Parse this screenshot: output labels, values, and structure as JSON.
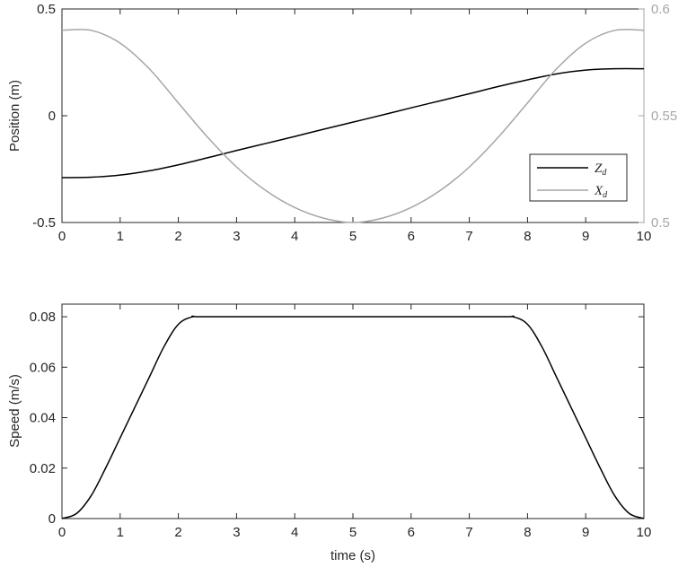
{
  "chart_data": [
    {
      "type": "line",
      "xlabel": "",
      "ylabel": "Position (m)",
      "xlim": [
        0,
        10
      ],
      "ylim": [
        -0.5,
        0.5
      ],
      "y2lim": [
        0.5,
        0.6
      ],
      "xticks": [
        "0",
        "1",
        "2",
        "3",
        "4",
        "5",
        "6",
        "7",
        "8",
        "9",
        "10"
      ],
      "yticks": [
        "-0.5",
        "0",
        "0.5"
      ],
      "y2ticks": [
        "0.5",
        "0.55",
        "0.6"
      ],
      "legend_position": "bottom-right",
      "series": [
        {
          "name": "Z_d",
          "legend_main": "Z",
          "legend_sub": "d",
          "color": "#000000",
          "axis": "left",
          "x": [
            0,
            0.5,
            1,
            1.5,
            2,
            2.5,
            3,
            3.5,
            4,
            4.5,
            5,
            5.5,
            6,
            6.5,
            7,
            7.5,
            8,
            8.5,
            9,
            9.5,
            10
          ],
          "y": [
            -0.29,
            -0.288,
            -0.278,
            -0.258,
            -0.23,
            -0.197,
            -0.163,
            -0.13,
            -0.097,
            -0.063,
            -0.03,
            0.003,
            0.037,
            0.07,
            0.103,
            0.137,
            0.168,
            0.196,
            0.214,
            0.22,
            0.22
          ]
        },
        {
          "name": "X_d",
          "legend_main": "X",
          "legend_sub": "d",
          "color": "#a6a6a6",
          "axis": "right",
          "x": [
            0,
            0.5,
            1,
            1.5,
            2,
            2.5,
            3,
            3.5,
            4,
            4.5,
            5,
            5.5,
            6,
            6.5,
            7,
            7.5,
            8,
            8.5,
            9,
            9.5,
            10
          ],
          "y": [
            0.59,
            0.59,
            0.584,
            0.572,
            0.556,
            0.54,
            0.526,
            0.515,
            0.507,
            0.502,
            0.5,
            0.502,
            0.507,
            0.515,
            0.526,
            0.54,
            0.556,
            0.572,
            0.584,
            0.59,
            0.59
          ]
        }
      ]
    },
    {
      "type": "line",
      "xlabel": "time (s)",
      "ylabel": "Speed (m/s)",
      "xlim": [
        0,
        10
      ],
      "ylim": [
        0,
        0.085
      ],
      "xticks": [
        "0",
        "1",
        "2",
        "3",
        "4",
        "5",
        "6",
        "7",
        "8",
        "9",
        "10"
      ],
      "yticks": [
        "0",
        "0.02",
        "0.04",
        "0.06",
        "0.08"
      ],
      "series": [
        {
          "color": "#000000",
          "x": [
            0,
            0.25,
            0.5,
            0.75,
            1,
            1.25,
            1.5,
            1.75,
            2,
            2.25,
            2.5,
            5,
            7.5,
            7.75,
            8,
            8.25,
            8.5,
            8.75,
            9,
            9.25,
            9.5,
            9.75,
            10
          ],
          "y": [
            0,
            0.002,
            0.009,
            0.02,
            0.032,
            0.044,
            0.056,
            0.068,
            0.077,
            0.08,
            0.08,
            0.08,
            0.08,
            0.08,
            0.077,
            0.068,
            0.056,
            0.044,
            0.032,
            0.02,
            0.009,
            0.002,
            0
          ]
        }
      ]
    }
  ]
}
